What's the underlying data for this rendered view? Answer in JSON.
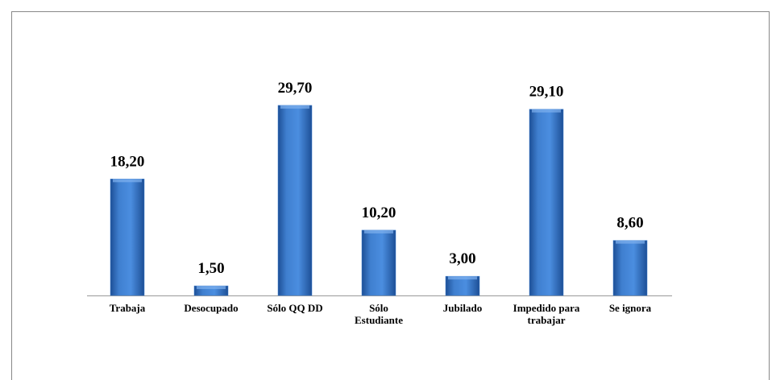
{
  "chart_data": {
    "type": "bar",
    "categories": [
      "Trabaja",
      "Desocupado",
      "Sólo QQ DD",
      "Sólo\nEstudiante",
      "Jubilado",
      "Impedido para\ntrabajar",
      "Se ignora"
    ],
    "values": [
      18.2,
      1.5,
      29.7,
      10.2,
      3.0,
      29.1,
      8.6
    ],
    "value_labels": [
      "18,20",
      "1,50",
      "29,70",
      "10,20",
      "3,00",
      "29,10",
      "8,60"
    ],
    "color": "#3f7fcf"
  }
}
